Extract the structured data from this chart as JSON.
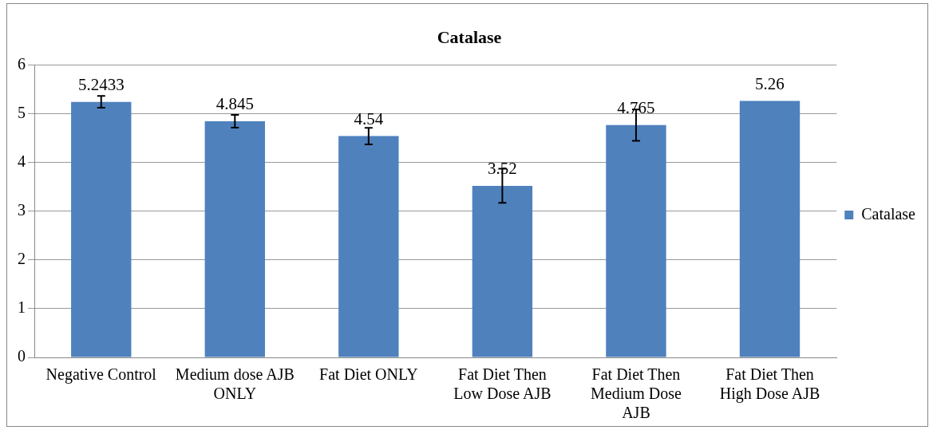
{
  "chart_data": {
    "type": "bar",
    "title": "Catalase",
    "categories": [
      "Negative Control",
      "Medium dose AJB ONLY",
      "Fat Diet ONLY",
      "Fat Diet Then Low Dose AJB",
      "Fat Diet Then Medium Dose AJB",
      "Fat Diet Then High Dose AJB"
    ],
    "series": [
      {
        "name": "Catalase",
        "color": "#4f81bd",
        "values": [
          5.2433,
          4.845,
          4.54,
          3.52,
          4.765,
          5.26
        ],
        "errors": [
          0.12,
          0.13,
          0.17,
          0.35,
          0.32,
          null
        ]
      }
    ],
    "ylim": [
      0,
      6
    ],
    "yticks": [
      0,
      1,
      2,
      3,
      4,
      5,
      6
    ],
    "grid": "y",
    "legend": "right",
    "data_labels": true
  }
}
